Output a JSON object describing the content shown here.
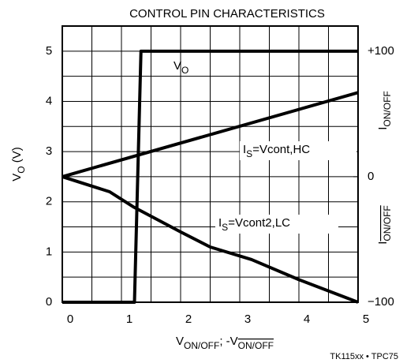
{
  "chart_data": {
    "type": "line",
    "title": "CONTROL PIN CHARACTERISTICS",
    "ylabel": [
      "V",
      "O",
      " (V)"
    ],
    "xlabel": [
      "V",
      "ON/OFF",
      "; -V",
      "ON/OFF"
    ],
    "y2label_top": [
      "I",
      "ON/OFF"
    ],
    "y2label_bottom": [
      "I",
      "ON/OFF"
    ],
    "footer": "TK115xx • TPC75",
    "xlim": [
      0,
      5
    ],
    "xticks": [
      0,
      1,
      2,
      3,
      4,
      5
    ],
    "xminor": [
      0.5,
      1.5,
      2.5,
      3.5,
      4.5
    ],
    "ylim": [
      0,
      5.5
    ],
    "yticks": [
      0,
      1,
      2,
      3,
      4,
      5
    ],
    "yminor": [
      0.5,
      1.5,
      2.5,
      3.5,
      4.5,
      5.5
    ],
    "y2lim": [
      -100,
      120
    ],
    "y2ticks": [
      {
        "value": 100,
        "label": "+100"
      },
      0,
      {
        "value": -100,
        "label": "−100"
      }
    ],
    "grid": true,
    "series": [
      {
        "name": [
          "V",
          "O"
        ],
        "color": "#000000",
        "x": [
          0,
          1.22,
          1.33,
          5
        ],
        "values": [
          0,
          0,
          5,
          5
        ]
      },
      {
        "name": [
          "I",
          "S",
          "=Vcont,HC"
        ],
        "color": "#000000",
        "axis": "y2",
        "x": [
          0,
          5
        ],
        "values": [
          0,
          67
        ]
      },
      {
        "name": [
          "I",
          "S",
          "=Vcont2,LC"
        ],
        "color": "#000000",
        "axis": "y2",
        "x": [
          0,
          0.8,
          1.2,
          2,
          2.5,
          3.2,
          4,
          5
        ],
        "values": [
          0,
          -12,
          -24,
          -44,
          -56,
          -66,
          -82,
          -100
        ]
      }
    ]
  }
}
